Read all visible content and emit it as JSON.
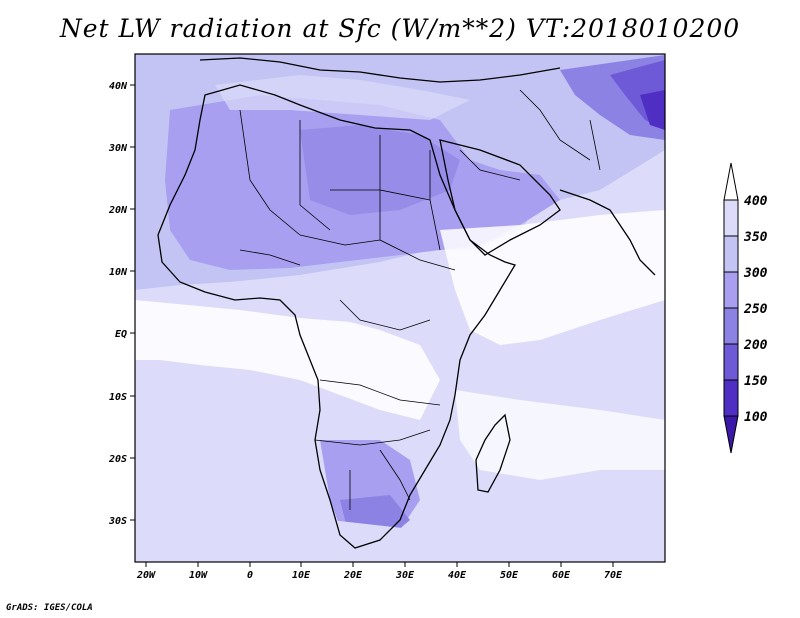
{
  "title": "Net LW radiation at Sfc (W/m**2) VT:2018010200",
  "credit": "GrADS: IGES/COLA",
  "map": {
    "lon_ticks": [
      "20W",
      "10W",
      "0",
      "10E",
      "20E",
      "30E",
      "40E",
      "50E",
      "60E",
      "70E"
    ],
    "lat_ticks": [
      "40N",
      "30N",
      "20N",
      "10N",
      "EQ",
      "10S",
      "20S",
      "30S"
    ]
  },
  "colorbar": {
    "labels": [
      "400",
      "350",
      "300",
      "250",
      "200",
      "150",
      "100"
    ],
    "colors": [
      "#ffffff",
      "#dcdcfa",
      "#c4c4f4",
      "#a89ff0",
      "#8c82e4",
      "#6e5ad6",
      "#4f2ec3",
      "#3a18a8"
    ]
  },
  "colors": {
    "background_low": "#dcdcfa",
    "clear_land": "#a89ff0",
    "cloudy": "#ffffff",
    "coast": "#000000"
  }
}
